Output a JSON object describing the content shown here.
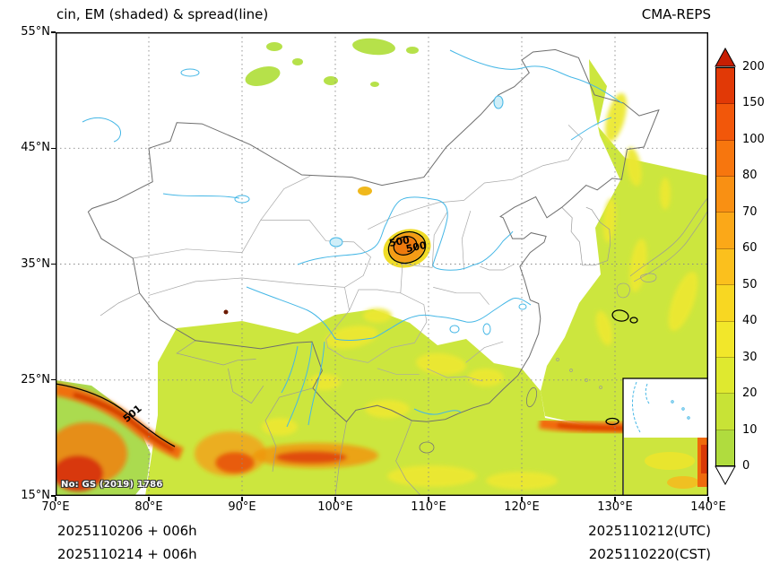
{
  "header": {
    "title": "cin, EM (shaded) & spread(line)",
    "model": "CMA-REPS"
  },
  "axes": {
    "x_ticks": [
      "70°E",
      "80°E",
      "90°E",
      "100°E",
      "110°E",
      "120°E",
      "130°E",
      "140°E"
    ],
    "y_ticks": [
      "55°N",
      "45°N",
      "35°N",
      "25°N",
      "15°N"
    ]
  },
  "colorbar": {
    "tick_labels": [
      "200",
      "150",
      "100",
      "80",
      "70",
      "60",
      "50",
      "40",
      "30",
      "20",
      "10",
      "0"
    ],
    "segment_colors_top_to_bottom": [
      "#e13906",
      "#f2570a",
      "#f7760e",
      "#f99013",
      "#fba818",
      "#fbc01d",
      "#f8d722",
      "#f2e72a",
      "#dfe92f",
      "#c8e336",
      "#b0dc3e"
    ],
    "over_color": "#c81e03",
    "under_color": "#ffffff"
  },
  "map": {
    "contour_labels": [
      "500",
      "500",
      "501"
    ],
    "watermark": "No: GS (2019) 1786"
  },
  "footer": {
    "left_lines": [
      "2025110206 + 006h",
      "2025110214 + 006h"
    ],
    "right_lines": [
      "2025110212(UTC)",
      "2025110220(CST)"
    ]
  },
  "chart_data": {
    "type": "heatmap",
    "title": "cin, EM (shaded) & spread(line)",
    "model": "CMA-REPS",
    "x_range_deg_east": [
      70,
      140
    ],
    "y_range_deg_north": [
      15,
      55
    ],
    "shading_levels": [
      0,
      10,
      20,
      30,
      40,
      50,
      60,
      70,
      80,
      100,
      150,
      200
    ],
    "contour_labels_visible": [
      "500",
      "501"
    ],
    "init_times": [
      "2025110206",
      "2025110214"
    ],
    "lead": "006h",
    "valid_times": [
      "2025110212(UTC)",
      "2025110220(CST)"
    ]
  }
}
